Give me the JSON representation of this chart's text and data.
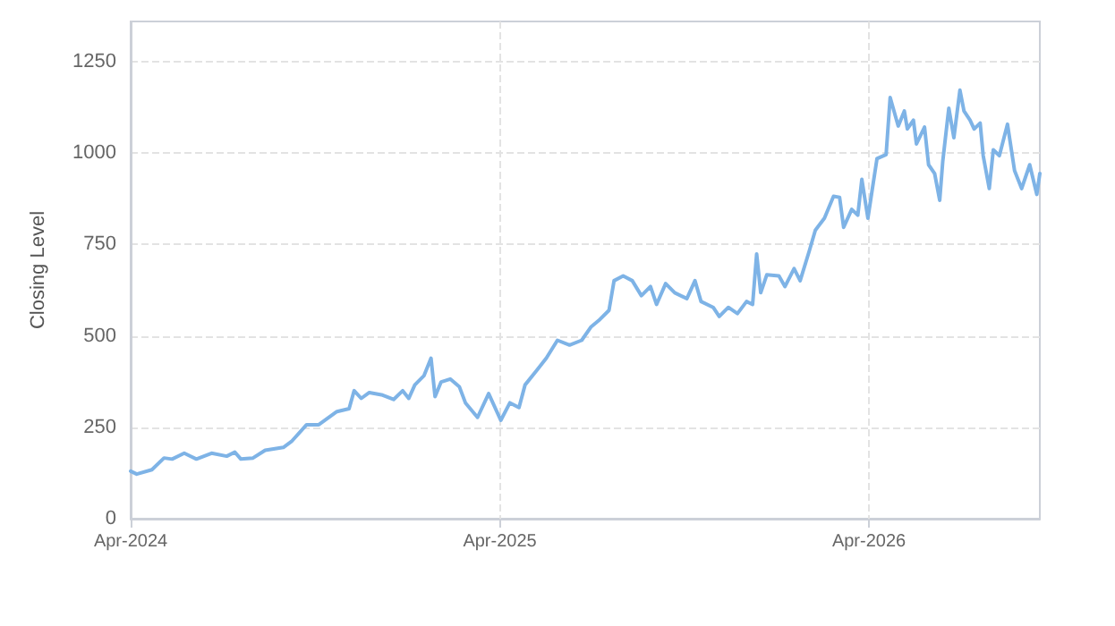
{
  "chart_data": {
    "type": "line",
    "ylabel": "Closing Level",
    "x": [
      "2024-04-01",
      "2024-04-07",
      "2024-04-22",
      "2024-05-04",
      "2024-05-12",
      "2024-05-24",
      "2024-06-05",
      "2024-06-20",
      "2024-07-05",
      "2024-07-13",
      "2024-07-19",
      "2024-07-31",
      "2024-08-12",
      "2024-08-30",
      "2024-09-07",
      "2024-09-22",
      "2024-10-04",
      "2024-10-22",
      "2024-11-03",
      "2024-11-08",
      "2024-11-15",
      "2024-11-23",
      "2024-12-05",
      "2024-12-17",
      "2024-12-26",
      "2025-01-01",
      "2025-01-07",
      "2025-01-16",
      "2025-01-23",
      "2025-01-27",
      "2025-02-02",
      "2025-02-11",
      "2025-02-20",
      "2025-02-26",
      "2025-03-10",
      "2025-03-21",
      "2025-04-02",
      "2025-04-11",
      "2025-04-20",
      "2025-04-26",
      "2025-05-08",
      "2025-05-17",
      "2025-05-28",
      "2025-06-09",
      "2025-06-21",
      "2025-06-30",
      "2025-07-09",
      "2025-07-18",
      "2025-07-23",
      "2025-08-01",
      "2025-08-10",
      "2025-08-19",
      "2025-08-28",
      "2025-09-03",
      "2025-09-12",
      "2025-09-21",
      "2025-10-03",
      "2025-10-11",
      "2025-10-17",
      "2025-10-29",
      "2025-11-04",
      "2025-11-13",
      "2025-11-22",
      "2025-12-01",
      "2025-12-07",
      "2025-12-11",
      "2025-12-15",
      "2025-12-21",
      "2026-01-02",
      "2026-01-08",
      "2026-01-17",
      "2026-01-23",
      "2026-02-01",
      "2026-02-07",
      "2026-02-16",
      "2026-02-25",
      "2026-03-03",
      "2026-03-07",
      "2026-03-15",
      "2026-03-21",
      "2026-03-25",
      "2026-03-31",
      "2026-04-04",
      "2026-04-09",
      "2026-04-18",
      "2026-04-22",
      "2026-04-30",
      "2026-05-06",
      "2026-05-09",
      "2026-05-15",
      "2026-05-18",
      "2026-05-26",
      "2026-05-30",
      "2026-06-05",
      "2026-06-10",
      "2026-06-13",
      "2026-06-19",
      "2026-06-24",
      "2026-06-30",
      "2026-07-04",
      "2026-07-10",
      "2026-07-14",
      "2026-07-20",
      "2026-07-23",
      "2026-07-29",
      "2026-08-02",
      "2026-08-08",
      "2026-08-16",
      "2026-08-23",
      "2026-08-30",
      "2026-09-07",
      "2026-09-14",
      "2026-09-17"
    ],
    "series": [
      {
        "color": "#7eb3e6",
        "values": [
          130,
          122,
          134,
          166,
          163,
          179,
          163,
          179,
          171,
          182,
          163,
          166,
          187,
          195,
          211,
          257,
          257,
          293,
          301,
          350,
          329,
          345,
          339,
          326,
          350,
          329,
          366,
          391,
          439,
          334,
          374,
          382,
          361,
          317,
          277,
          342,
          269,
          317,
          304,
          366,
          407,
          439,
          488,
          475,
          488,
          524,
          545,
          570,
          651,
          664,
          651,
          610,
          635,
          586,
          643,
          618,
          602,
          651,
          594,
          578,
          553,
          578,
          561,
          594,
          586,
          724,
          618,
          667,
          664,
          635,
          684,
          651,
          732,
          789,
          822,
          882,
          879,
          797,
          846,
          830,
          928,
          822,
          895,
          985,
          996,
          1152,
          1074,
          1115,
          1066,
          1090,
          1025,
          1071,
          968,
          944,
          871,
          977,
          1123,
          1042,
          1172,
          1115,
          1090,
          1066,
          1082,
          993,
          903,
          1009,
          993,
          1079,
          952,
          903,
          968,
          887,
          944
        ]
      }
    ],
    "xlim": [
      "2024-04-01",
      "2026-09-17"
    ],
    "xticks": [
      {
        "value": "2024-04-01",
        "label": "Apr-2024"
      },
      {
        "value": "2025-04-01",
        "label": "Apr-2025"
      },
      {
        "value": "2026-04-01",
        "label": "Apr-2026"
      }
    ],
    "ylim": [
      0,
      1360
    ],
    "yticks": [
      0,
      250,
      500,
      750,
      1000,
      1250
    ],
    "grid": true,
    "line_style": "solid",
    "marker": "none"
  }
}
